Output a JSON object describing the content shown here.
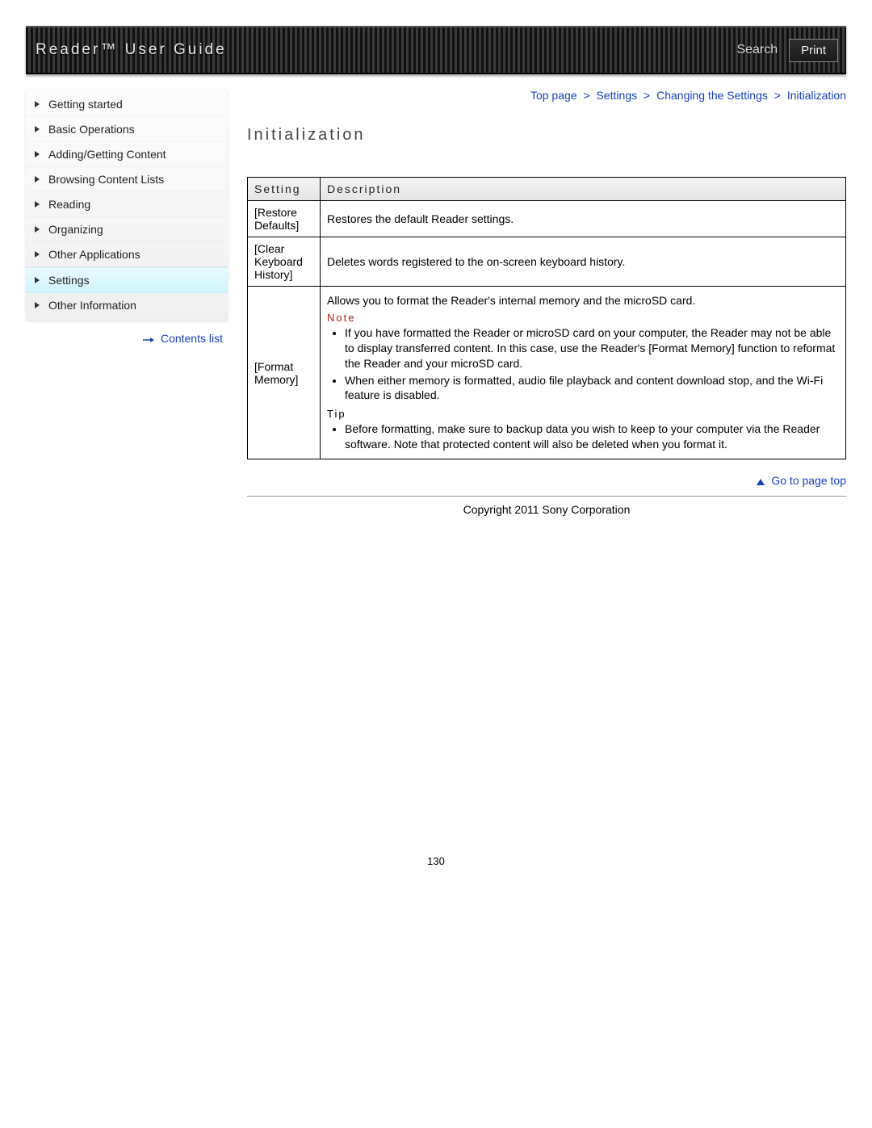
{
  "header": {
    "title": "Reader™ User Guide",
    "search_label": "Search",
    "print_label": "Print"
  },
  "colors": {
    "link": "#1a3fbf",
    "note": "#b02020",
    "header_bg_dark": "#111111",
    "header_bg_light": "#3a3a3a",
    "sidebar_active_bg": "#d1f4fb"
  },
  "sidebar": {
    "items": [
      {
        "label": "Getting started",
        "active": false
      },
      {
        "label": "Basic Operations",
        "active": false
      },
      {
        "label": "Adding/Getting Content",
        "active": false
      },
      {
        "label": "Browsing Content Lists",
        "active": false
      },
      {
        "label": "Reading",
        "active": false
      },
      {
        "label": "Organizing",
        "active": false
      },
      {
        "label": "Other Applications",
        "active": false
      },
      {
        "label": "Settings",
        "active": true
      },
      {
        "label": "Other Information",
        "active": false
      }
    ],
    "contents_list_label": "Contents list"
  },
  "breadcrumb": {
    "items": [
      "Top page",
      "Settings",
      "Changing the Settings",
      "Initialization"
    ],
    "separator": ">"
  },
  "main": {
    "title": "Initialization",
    "table": {
      "columns": [
        "Setting",
        "Description"
      ],
      "rows": [
        {
          "setting": "[Restore Defaults]",
          "description_plain": "Restores the default Reader settings."
        },
        {
          "setting": "[Clear Keyboard History]",
          "description_plain": "Deletes words registered to the on-screen keyboard history."
        },
        {
          "setting": "[Format Memory]",
          "intro": "Allows you to format the Reader's internal memory and the microSD card.",
          "note_label": "Note",
          "note_items": [
            "If you have formatted the Reader or microSD card on your computer, the Reader may not be able to display transferred content. In this case, use the Reader's [Format Memory] function to reformat the Reader and your microSD card.",
            "When either memory is formatted, audio file playback and content download stop, and the Wi-Fi feature is disabled."
          ],
          "tip_label": "Tip",
          "tip_items": [
            "Before formatting, make sure to backup data you wish to keep to your computer via the Reader software. Note that protected content will also be deleted when you format it."
          ]
        }
      ]
    },
    "go_to_top_label": "Go to page top"
  },
  "footer": {
    "copyright": "Copyright 2011 Sony Corporation",
    "page_number": "130"
  }
}
